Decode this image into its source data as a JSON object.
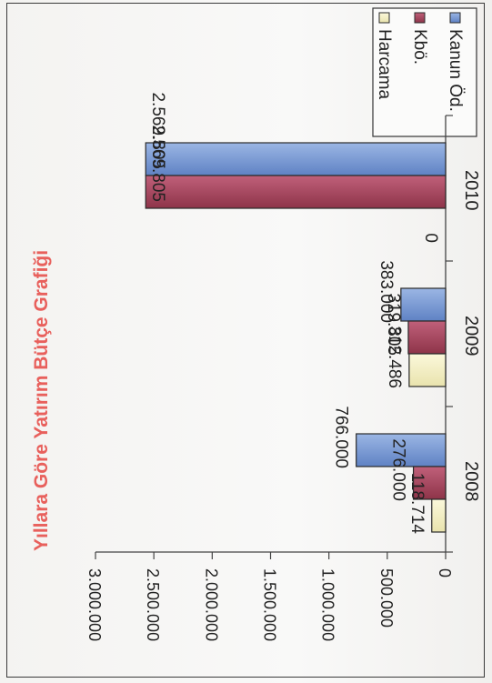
{
  "chart_data": {
    "type": "bar",
    "orientation": "horizontal",
    "title": "Yıllara Göre Yatırım Bütçe Grafiği",
    "categories": [
      "2008",
      "2009",
      "2010"
    ],
    "series": [
      {
        "name": "Kanun Öd.",
        "color": "#7f9ed6",
        "values": [
          766000,
          383000,
          2569805
        ]
      },
      {
        "name": "Kbö.",
        "color": "#a8475f",
        "values": [
          276000,
          319805,
          2569805
        ]
      },
      {
        "name": "Harcama",
        "color": "#f3efc4",
        "values": [
          118714,
          312486,
          0
        ]
      }
    ],
    "data_labels": [
      [
        "766.000",
        "276.000",
        "118.714"
      ],
      [
        "383.000",
        "319.805",
        "312.486"
      ],
      [
        "2.569.805",
        "2.569.805",
        "0"
      ]
    ],
    "ticks": [
      "0",
      "500.000",
      "1.000.000",
      "1.500.000",
      "2.000.000",
      "2.500.000",
      "3.000.000"
    ],
    "xlim": [
      0,
      3000000
    ],
    "grid": false,
    "legend_position": "right"
  }
}
